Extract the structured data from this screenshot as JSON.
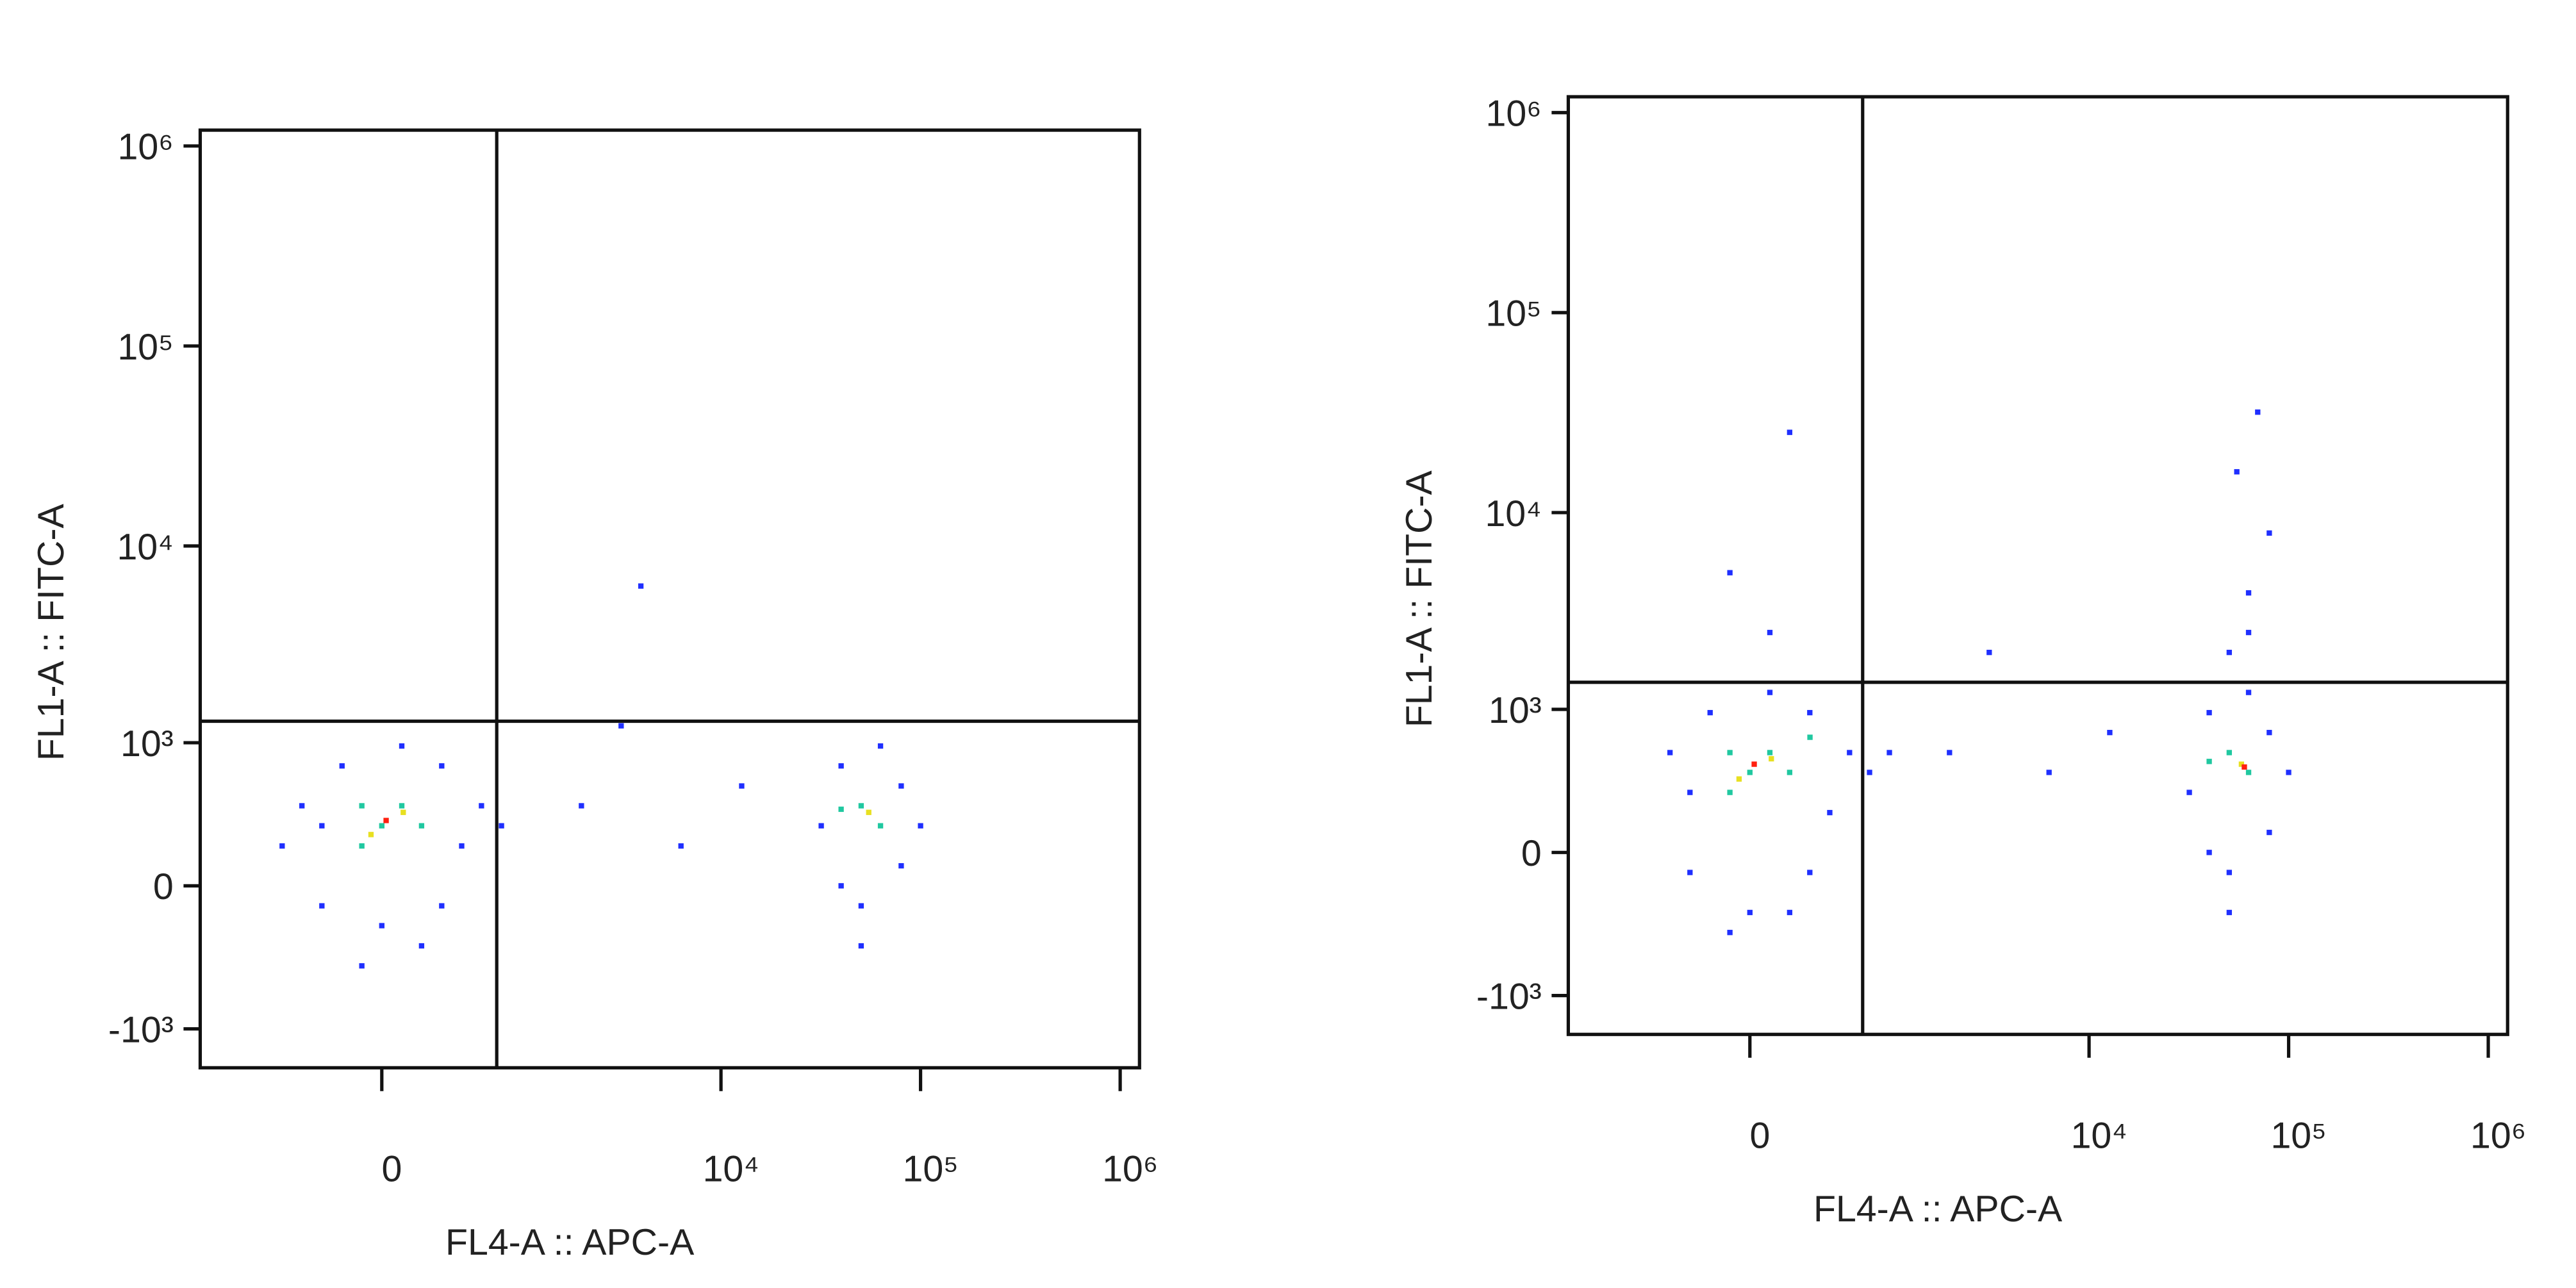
{
  "chart_data": [
    {
      "type": "scatter",
      "xlabel": "FL4-A :: APC-A",
      "ylabel": "FL1-A :: FITC-A",
      "xscale": "biexponential",
      "yscale": "biexponential",
      "xlim": [
        -1600,
        1250000
      ],
      "ylim": [
        -1600,
        1200000
      ],
      "xticks": [
        {
          "value": 0,
          "label": "0"
        },
        {
          "value": 10000,
          "label": "10⁴"
        },
        {
          "value": 100000,
          "label": "10⁵"
        },
        {
          "value": 1000000,
          "label": "10⁶"
        }
      ],
      "yticks": [
        {
          "value": -1000,
          "label": "-10³"
        },
        {
          "value": 0,
          "label": "0"
        },
        {
          "value": 1000,
          "label": "10³"
        },
        {
          "value": 10000,
          "label": "10⁴"
        },
        {
          "value": 100000,
          "label": "10⁵"
        },
        {
          "value": 1000000,
          "label": "10⁶"
        }
      ],
      "quadrant_gate": {
        "x": 700,
        "y": 1300
      },
      "series": [
        {
          "color": "#1f2fff",
          "x": [
            -299,
            -190,
            299,
            423,
            299,
            -299,
            0,
            -423,
            568,
            93,
            -93,
            190,
            745,
            -568,
            31800,
            80000,
            40000,
            80000,
            50400,
            40000,
            63000,
            100000,
            50400,
            1980,
            6300,
            12700,
            3150,
            3960
          ],
          "y": [
            299,
            745,
            745,
            190,
            -93,
            -93,
            -190,
            423,
            423,
            960,
            -423,
            -299,
            299,
            190,
            299,
            568,
            745,
            93,
            -93,
            0,
            960,
            299,
            -299,
            423,
            190,
            568,
            1230,
            6300
          ]
        },
        {
          "color": "#20c8a0",
          "x": [
            0,
            93,
            -93,
            190,
            -93,
            50400,
            63000,
            40000
          ],
          "y": [
            299,
            423,
            190,
            299,
            423,
            423,
            299,
            400
          ]
        },
        {
          "color": "#e8e020",
          "x": [
            -50,
            100,
            55000
          ],
          "y": [
            250,
            380,
            380
          ]
        },
        {
          "color": "#ff2010",
          "x": [
            20
          ],
          "y": [
            330
          ]
        }
      ]
    },
    {
      "type": "scatter",
      "xlabel": "FL4-A :: APC-A",
      "ylabel": "FL1-A :: FITC-A",
      "xscale": "biexponential",
      "yscale": "biexponential",
      "xlim": [
        -1600,
        1250000
      ],
      "ylim": [
        -1600,
        1200000
      ],
      "xticks": [
        {
          "value": 0,
          "label": "0"
        },
        {
          "value": 10000,
          "label": "10⁴"
        },
        {
          "value": 100000,
          "label": "10⁵"
        },
        {
          "value": 1000000,
          "label": "10⁶"
        }
      ],
      "yticks": [
        {
          "value": -1000,
          "label": "-10³"
        },
        {
          "value": 0,
          "label": "0"
        },
        {
          "value": 1000,
          "label": "10³"
        },
        {
          "value": 10000,
          "label": "10⁴"
        },
        {
          "value": 100000,
          "label": "10⁵"
        },
        {
          "value": 1000000,
          "label": "10⁶"
        }
      ],
      "quadrant_gate": {
        "x": 680,
        "y": 1390
      },
      "series": [
        {
          "color": "#1f2fff",
          "x": [
            -299,
            -190,
            299,
            423,
            299,
            -299,
            0,
            -423,
            568,
            93,
            -93,
            190,
            745,
            960,
            31800,
            80000,
            40000,
            80000,
            50400,
            40000,
            63000,
            100000,
            50400,
            50400,
            63000,
            80000,
            55000,
            70000,
            63000,
            93,
            -93,
            190,
            1980,
            6300,
            12700,
            3150
          ],
          "y": [
            299,
            960,
            960,
            190,
            -93,
            -93,
            -299,
            568,
            568,
            1230,
            -423,
            -299,
            423,
            568,
            299,
            745,
            960,
            93,
            -93,
            0,
            1230,
            423,
            -299,
            1980,
            3960,
            7900,
            16000,
            31800,
            2500,
            2500,
            5000,
            25200,
            568,
            423,
            745,
            1980
          ]
        },
        {
          "color": "#20c8a0",
          "x": [
            0,
            93,
            -93,
            190,
            -93,
            50400,
            63000,
            40000,
            300
          ],
          "y": [
            423,
            568,
            299,
            423,
            568,
            568,
            423,
            500,
            700
          ]
        },
        {
          "color": "#e8e020",
          "x": [
            -50,
            100,
            58000
          ],
          "y": [
            380,
            520,
            480
          ]
        },
        {
          "color": "#ff2010",
          "x": [
            20,
            60000
          ],
          "y": [
            480,
            460
          ]
        }
      ]
    }
  ]
}
